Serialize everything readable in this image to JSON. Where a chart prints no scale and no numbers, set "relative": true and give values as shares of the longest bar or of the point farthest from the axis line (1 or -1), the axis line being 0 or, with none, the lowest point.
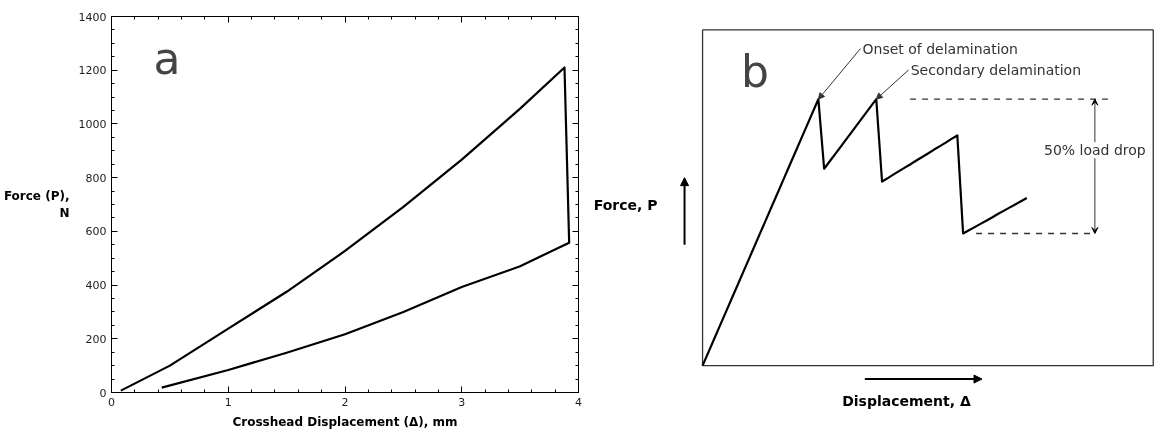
{
  "chart_data": [
    {
      "type": "line",
      "xlabel": "Crosshead Displacement (Δ), mm",
      "ylabel": "Force (P), N",
      "x": [
        0.08,
        0.5,
        1.0,
        1.5,
        2.0,
        2.5,
        3.0,
        3.5,
        3.88,
        3.92,
        3.5,
        3.0,
        2.5,
        2.0,
        1.5,
        1.0,
        0.43
      ],
      "series": [
        {
          "color": "#000000",
          "values": [
            7,
            100,
            238,
            375,
            527,
            691,
            867,
            1057,
            1210,
            558,
            470,
            393,
            300,
            217,
            148,
            84,
            18
          ]
        }
      ],
      "xlim": [
        0,
        4
      ],
      "xticks": [
        0,
        1,
        2,
        3,
        4
      ],
      "ylim": [
        0,
        1400
      ],
      "yticks": [
        0,
        200,
        400,
        600,
        800,
        1000,
        1200,
        1400
      ],
      "grid": false,
      "line_style": "solid",
      "annotations": [
        "a"
      ]
    },
    {
      "type": "line",
      "relative": true,
      "xlabel": "Displacement, Δ",
      "ylabel": "Force, P",
      "categories": [
        null,
        null,
        null,
        null,
        null,
        null,
        null,
        null,
        null,
        null,
        null,
        null,
        null,
        null,
        null,
        null,
        null,
        null,
        null,
        null,
        null,
        null,
        null,
        null,
        null,
        null,
        null,
        null,
        null,
        null,
        null,
        null,
        null,
        null,
        null,
        null,
        null,
        null,
        null,
        null,
        null,
        null,
        null,
        null,
        null,
        null,
        null,
        null,
        null,
        null,
        null,
        null,
        null,
        null,
        null,
        null,
        null
      ],
      "series": [
        {
          "color": "#000000",
          "values": [
            0,
            0.05,
            0.1,
            0.15,
            0.2,
            0.25,
            0.3,
            0.35,
            0.4,
            0.45,
            0.5,
            0.55,
            0.6,
            0.65,
            0.7,
            0.75,
            0.8,
            0.85,
            0.9,
            0.95,
            1.0,
            0.739,
            0.768,
            0.797,
            0.826,
            0.855,
            0.884,
            0.913,
            0.942,
            0.971,
            1.0,
            0.691,
            0.704,
            0.718,
            0.731,
            0.744,
            0.757,
            0.771,
            0.784,
            0.797,
            0.811,
            0.824,
            0.837,
            0.851,
            0.864,
            0.496,
            0.508,
            0.52,
            0.532,
            0.544,
            0.556,
            0.569,
            0.581,
            0.593,
            0.605,
            0.617,
            0.629
          ]
        }
      ],
      "grid": false,
      "line_style": "solid",
      "ref_lines": [
        {
          "axis": "y",
          "value": 1,
          "line_style": "dashed",
          "color": "#333333"
        },
        {
          "axis": "y",
          "value": 0.496,
          "line_style": "dashed",
          "color": "#333333"
        }
      ],
      "annotations": [
        "b",
        "Onset of delamination",
        "Secondary delamination",
        "50% load drop"
      ]
    }
  ]
}
